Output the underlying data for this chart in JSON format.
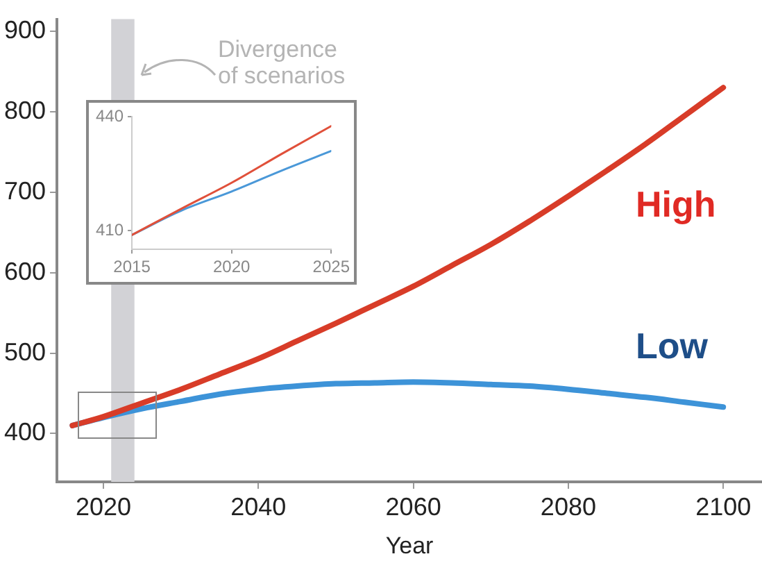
{
  "chart_data": [
    {
      "type": "line",
      "xlabel": "Year",
      "x": [
        2016,
        2020,
        2025,
        2030,
        2035,
        2040,
        2045,
        2050,
        2055,
        2060,
        2065,
        2070,
        2075,
        2080,
        2085,
        2090,
        2095,
        2100
      ],
      "series": [
        {
          "name": "High",
          "color": "#d83c28",
          "values": [
            410,
            421,
            438,
            455,
            474,
            493,
            515,
            537,
            560,
            583,
            609,
            635,
            664,
            695,
            727,
            760,
            795,
            830
          ]
        },
        {
          "name": "Low",
          "color": "#3d93d8",
          "values": [
            410,
            420,
            431,
            440,
            449,
            455,
            459,
            462,
            463,
            464,
            463,
            461,
            459,
            455,
            450,
            445,
            439,
            433
          ]
        }
      ],
      "xlim": [
        2014,
        2105
      ],
      "xticks": [
        2020,
        2040,
        2060,
        2080,
        2100
      ],
      "ylim": [
        340,
        915
      ],
      "yticks": [
        400,
        500,
        600,
        700,
        800,
        900
      ],
      "bands": [
        {
          "axis": "x",
          "from": 2021,
          "to": 2024,
          "label": "Divergence of scenarios",
          "color": "#d2d2d6"
        }
      ],
      "grid": false,
      "legend": false,
      "marker": "none",
      "line_style": "solid"
    },
    {
      "type": "line",
      "x": [
        2015,
        2017.5,
        2020,
        2022.5,
        2025
      ],
      "series": [
        {
          "color": "#e0503a",
          "values": [
            408.8,
            415.8,
            422.6,
            430.2,
            437.6
          ]
        },
        {
          "color": "#4a98d8",
          "values": [
            408.8,
            415.3,
            420.3,
            425.8,
            431
          ]
        }
      ],
      "xlim": [
        2015,
        2025
      ],
      "xticks": [
        2015,
        2020,
        2025
      ],
      "ylim": [
        405,
        440
      ],
      "yticks": [
        410,
        440
      ],
      "grid": false,
      "legend": false,
      "marker": "none",
      "line_style": "solid"
    }
  ]
}
